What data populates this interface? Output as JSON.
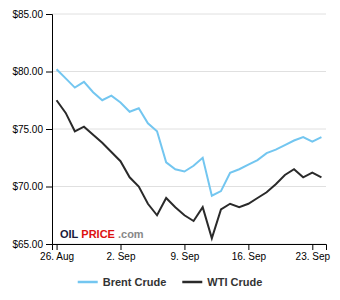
{
  "chart_data": {
    "type": "line",
    "x": [
      0,
      1,
      2,
      3,
      4,
      5,
      6,
      7,
      8,
      9,
      10,
      11,
      12,
      13,
      14,
      15,
      16,
      17,
      18,
      19,
      20,
      21,
      22,
      23,
      24,
      25,
      26,
      27,
      28,
      29
    ],
    "series": [
      {
        "name": "Brent Crude",
        "color": "#73c6f0",
        "values": [
          80.2,
          79.4,
          78.6,
          79.1,
          78.2,
          77.5,
          77.9,
          77.3,
          76.5,
          76.8,
          75.5,
          74.8,
          72.1,
          71.5,
          71.3,
          71.8,
          72.5,
          69.2,
          69.6,
          71.2,
          71.5,
          71.9,
          72.3,
          72.9,
          73.2,
          73.6,
          74.0,
          74.3,
          73.9,
          74.3
        ]
      },
      {
        "name": "WTI Crude",
        "color": "#2a2a2a",
        "values": [
          77.5,
          76.4,
          74.8,
          75.2,
          74.5,
          73.8,
          73.0,
          72.2,
          70.8,
          70.0,
          68.5,
          67.5,
          69.0,
          68.2,
          67.5,
          67.0,
          68.2,
          65.5,
          68.0,
          68.5,
          68.2,
          68.5,
          69.0,
          69.5,
          70.2,
          71.0,
          71.5,
          70.8,
          71.2,
          70.8
        ]
      }
    ],
    "xlim": [
      -0.5,
      29.5
    ],
    "xticks": [
      {
        "value": 0,
        "label": "26. Aug"
      },
      {
        "value": 7,
        "label": "2. Sep"
      },
      {
        "value": 14,
        "label": "9. Sep"
      },
      {
        "value": 21,
        "label": "16. Sep"
      },
      {
        "value": 28,
        "label": "23. Sep"
      }
    ],
    "ylim": [
      65.0,
      85.0
    ],
    "yticks": [
      {
        "value": 65.0,
        "label": "$65.00"
      },
      {
        "value": 70.0,
        "label": "$70.00"
      },
      {
        "value": 75.0,
        "label": "$75.00"
      },
      {
        "value": 80.0,
        "label": "$80.00"
      },
      {
        "value": 85.0,
        "label": "$85.00"
      }
    ],
    "grid": true,
    "legend": "bottom",
    "annotations": [
      {
        "text": "OIL",
        "color": "#1a1a3a"
      },
      {
        "text": "PRICE",
        "color": "#dd1111"
      },
      {
        "text": ".com",
        "color": "#888888"
      }
    ]
  }
}
